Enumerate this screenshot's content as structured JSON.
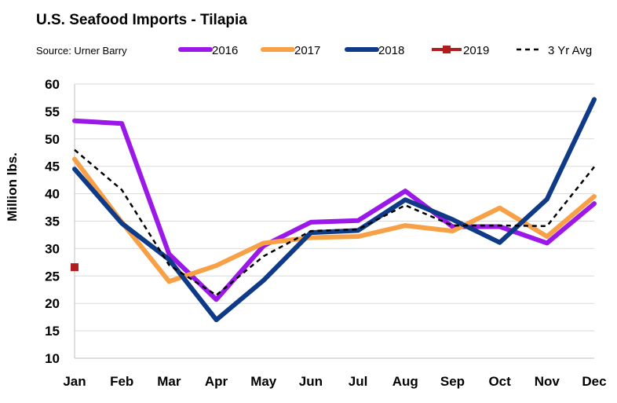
{
  "chart_data": {
    "type": "line",
    "title": "U.S. Seafood Imports - Tilapia",
    "source": "Source: Urner Barry",
    "ylabel": "Million lbs.",
    "xlabel": "",
    "categories": [
      "Jan",
      "Feb",
      "Mar",
      "Apr",
      "May",
      "Jun",
      "Jul",
      "Aug",
      "Sep",
      "Oct",
      "Nov",
      "Dec"
    ],
    "ylim": [
      10,
      60
    ],
    "yticks": [
      10,
      15,
      20,
      25,
      30,
      35,
      40,
      45,
      50,
      55,
      60
    ],
    "grid": true,
    "legend_position": "top",
    "series": [
      {
        "name": "2016",
        "color": "#9B18E8",
        "style": "solid",
        "values": [
          53.3,
          52.8,
          29.0,
          20.7,
          30.5,
          34.8,
          35.1,
          40.5,
          34.0,
          34.0,
          31.0,
          38.2
        ]
      },
      {
        "name": "2017",
        "color": "#F8A046",
        "style": "solid",
        "values": [
          46.3,
          34.8,
          24.0,
          26.9,
          31.0,
          32.0,
          32.2,
          34.2,
          33.2,
          37.4,
          32.2,
          39.5
        ]
      },
      {
        "name": "2018",
        "color": "#0F3A87",
        "style": "solid",
        "values": [
          44.5,
          34.6,
          28.0,
          17.0,
          24.2,
          32.9,
          33.3,
          38.9,
          35.3,
          31.1,
          39.0,
          57.2
        ]
      },
      {
        "name": "2019",
        "color": "#B01E1E",
        "style": "marker",
        "values": [
          26.6,
          null,
          null,
          null,
          null,
          null,
          null,
          null,
          null,
          null,
          null,
          null
        ]
      },
      {
        "name": "3 Yr Avg",
        "color": "#000000",
        "style": "dashed",
        "values": [
          48.0,
          40.7,
          27.0,
          21.5,
          28.6,
          33.2,
          33.5,
          37.9,
          34.2,
          34.2,
          34.1,
          44.9
        ]
      }
    ]
  }
}
